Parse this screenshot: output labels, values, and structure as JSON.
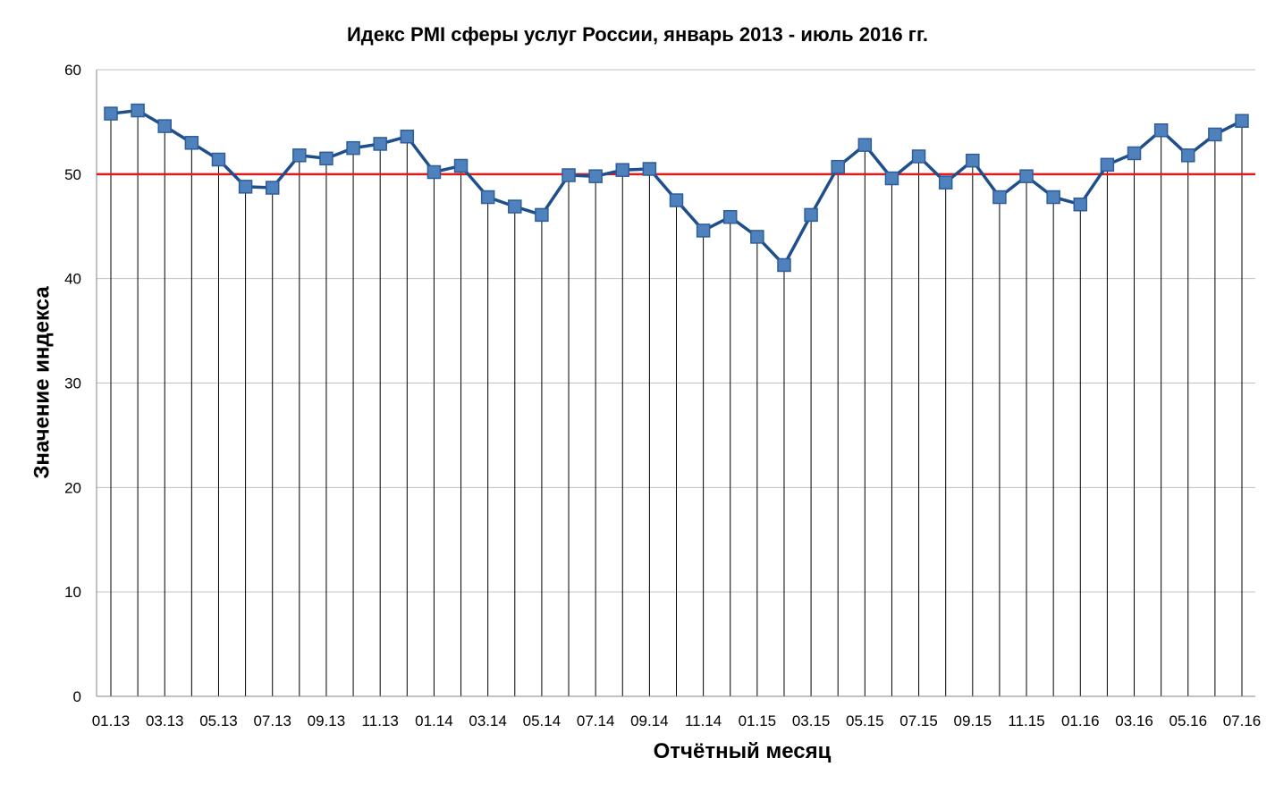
{
  "chart_data": {
    "type": "line",
    "title": "Идекс PMI сферы услуг России, январь 2013 - июль 2016 гг.",
    "xlabel": "Отчётный месяц",
    "ylabel": "Значение индекса",
    "ylim": [
      0,
      60
    ],
    "yticks": [
      0,
      10,
      20,
      30,
      40,
      50,
      60
    ],
    "grid": true,
    "drop_lines": true,
    "reference_line": {
      "value": 50,
      "color": "#e31a1c"
    },
    "colors": {
      "line": "#1f4e8c",
      "marker": "#4f81bd",
      "marker_edge": "#2e5d9a",
      "grid": "#c0c0c0",
      "drop_line": "#000000"
    },
    "categories": [
      "01.13",
      "02.13",
      "03.13",
      "04.13",
      "05.13",
      "06.13",
      "07.13",
      "08.13",
      "09.13",
      "10.13",
      "11.13",
      "12.13",
      "01.14",
      "02.14",
      "03.14",
      "04.14",
      "05.14",
      "06.14",
      "07.14",
      "08.14",
      "09.14",
      "10.14",
      "11.14",
      "12.14",
      "01.15",
      "02.15",
      "03.15",
      "04.15",
      "05.15",
      "06.15",
      "07.15",
      "08.15",
      "09.15",
      "10.15",
      "11.15",
      "12.15",
      "01.16",
      "02.16",
      "03.16",
      "04.16",
      "05.16",
      "06.16",
      "07.16"
    ],
    "tick_labels": [
      "01.13",
      "",
      "03.13",
      "",
      "05.13",
      "",
      "07.13",
      "",
      "09.13",
      "",
      "11.13",
      "",
      "01.14",
      "",
      "03.14",
      "",
      "05.14",
      "",
      "07.14",
      "",
      "09.14",
      "",
      "11.14",
      "",
      "01.15",
      "",
      "03.15",
      "",
      "05.15",
      "",
      "07.15",
      "",
      "09.15",
      "",
      "11.15",
      "",
      "01.16",
      "",
      "03.16",
      "",
      "05.16",
      "",
      "07.16"
    ],
    "values": [
      55.8,
      56.1,
      54.6,
      53.0,
      51.4,
      48.8,
      48.7,
      51.8,
      51.5,
      52.5,
      52.9,
      53.6,
      50.2,
      50.8,
      47.8,
      46.9,
      46.1,
      49.9,
      49.8,
      50.4,
      50.5,
      47.5,
      44.6,
      45.9,
      44.0,
      41.3,
      46.1,
      50.7,
      52.8,
      49.6,
      51.7,
      49.2,
      51.3,
      47.8,
      49.8,
      47.8,
      47.1,
      50.9,
      52.0,
      54.2,
      51.8,
      53.8,
      55.1
    ]
  }
}
